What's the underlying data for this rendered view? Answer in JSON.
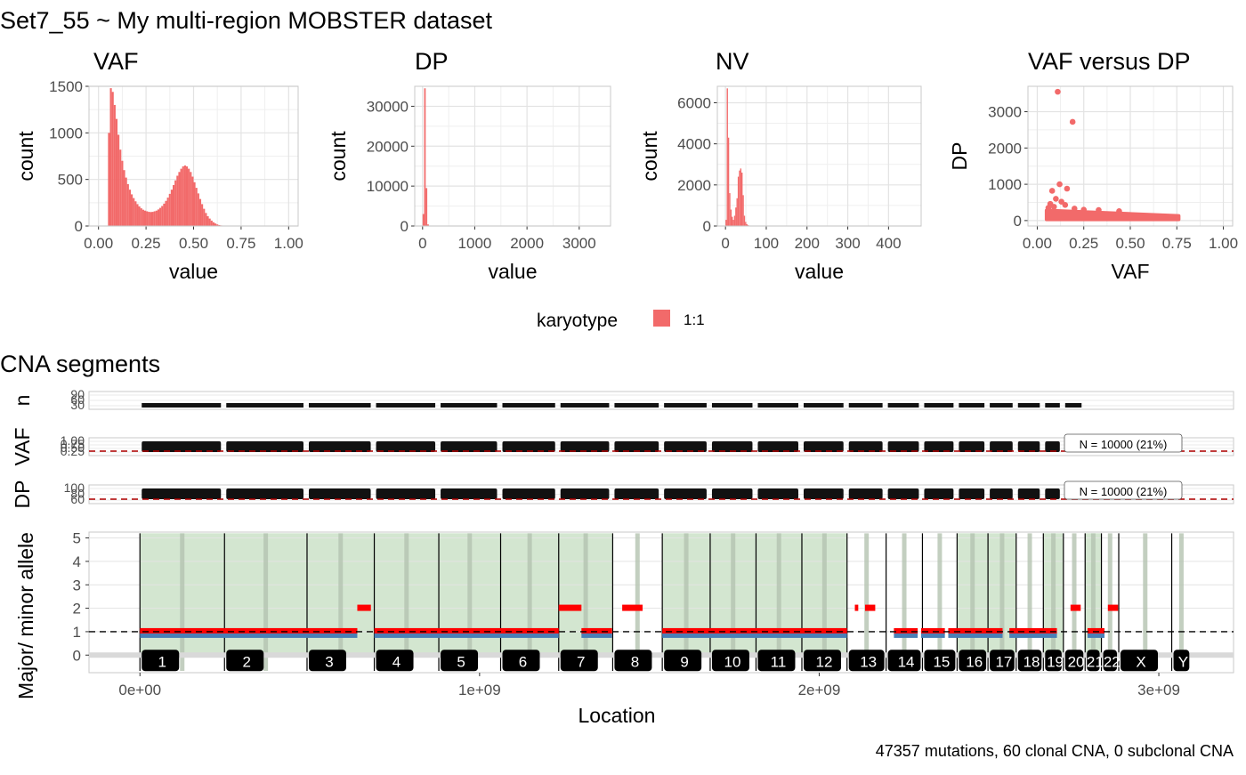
{
  "page": {
    "title": "Set7_55  ~  My multi-region MOBSTER dataset",
    "footer": "47357 mutations, 60 clonal CNA, 0 subclonal CNA",
    "cna_title": "CNA segments"
  },
  "colors": {
    "hist": "#F26A6A",
    "panel_border": "#C8C8C8",
    "grid": "#E3E3E3",
    "clonal_fill": "#D3E6D0",
    "major": "#FF0000",
    "minor": "#4A7FB5",
    "dashed": "#B00000"
  },
  "legend": {
    "title": "karyotype",
    "entries": [
      {
        "label": "1:1",
        "color": "#F26A6A"
      }
    ]
  },
  "chart_data": [
    {
      "type": "bar",
      "title": "VAF",
      "xlabel": "value",
      "ylabel": "count",
      "xlim": [
        -0.05,
        1.05
      ],
      "ylim": [
        0,
        1500
      ],
      "xticks": [
        0,
        0.25,
        0.5,
        0.75,
        1
      ],
      "xtick_labels": [
        "0.00",
        "0.25",
        "0.50",
        "0.75",
        "1.00"
      ],
      "yticks": [
        0,
        500,
        1000,
        1500
      ],
      "ytick_labels": [
        "0",
        "500",
        "1000",
        "1500"
      ],
      "bin_width": 0.01,
      "bin_start": 0.05,
      "values": [
        1000,
        1480,
        1440,
        1300,
        1150,
        980,
        820,
        700,
        600,
        520,
        450,
        390,
        340,
        300,
        265,
        235,
        210,
        190,
        175,
        165,
        158,
        152,
        150,
        152,
        158,
        165,
        178,
        195,
        215,
        240,
        270,
        305,
        345,
        390,
        440,
        490,
        540,
        580,
        615,
        640,
        650,
        640,
        615,
        580,
        530,
        470,
        410,
        350,
        290,
        235,
        185,
        140,
        105,
        80,
        58,
        40,
        27,
        17,
        10,
        6,
        3,
        2
      ]
    },
    {
      "type": "bar",
      "title": "DP",
      "xlabel": "value",
      "ylabel": "count",
      "xlim": [
        -150,
        3600
      ],
      "ylim": [
        0,
        35000
      ],
      "xticks": [
        0,
        1000,
        2000,
        3000
      ],
      "xtick_labels": [
        "0",
        "1000",
        "2000",
        "3000"
      ],
      "yticks": [
        0,
        10000,
        20000,
        30000
      ],
      "ytick_labels": [
        "0",
        "10000",
        "20000",
        "30000"
      ],
      "bin_width": 30,
      "bin_start": 0,
      "values": [
        3000,
        34500,
        9500,
        400,
        60,
        15,
        5
      ]
    },
    {
      "type": "bar",
      "title": "NV",
      "xlabel": "value",
      "ylabel": "count",
      "xlim": [
        -20,
        480
      ],
      "ylim": [
        0,
        6800
      ],
      "xticks": [
        0,
        100,
        200,
        300,
        400
      ],
      "xtick_labels": [
        "0",
        "100",
        "200",
        "300",
        "400"
      ],
      "yticks": [
        0,
        2000,
        4000,
        6000
      ],
      "ytick_labels": [
        "0",
        "2000",
        "4000",
        "6000"
      ],
      "bin_width": 3,
      "bin_start": 0,
      "values": [
        300,
        6700,
        4300,
        1600,
        800,
        450,
        300,
        500,
        900,
        1350,
        2400,
        2700,
        2800,
        2600,
        1500,
        500,
        200,
        90,
        40,
        15
      ]
    },
    {
      "type": "scatter",
      "title": "VAF versus DP",
      "xlabel": "VAF",
      "ylabel": "DP",
      "xlim": [
        -0.05,
        1.05
      ],
      "ylim": [
        -150,
        3700
      ],
      "xticks": [
        0,
        0.25,
        0.5,
        0.75,
        1
      ],
      "xtick_labels": [
        "0.00",
        "0.25",
        "0.50",
        "0.75",
        "1.00"
      ],
      "yticks": [
        0,
        1000,
        2000,
        3000
      ],
      "ytick_labels": [
        "0",
        "1000",
        "2000",
        "3000"
      ],
      "points": [
        [
          0.11,
          3550
        ],
        [
          0.19,
          2720
        ],
        [
          0.12,
          1000
        ],
        [
          0.08,
          820
        ],
        [
          0.16,
          880
        ],
        [
          0.1,
          600
        ],
        [
          0.13,
          520
        ],
        [
          0.15,
          430
        ],
        [
          0.07,
          460
        ],
        [
          0.09,
          380
        ],
        [
          0.2,
          330
        ],
        [
          0.33,
          290
        ],
        [
          0.44,
          260
        ],
        [
          0.06,
          350
        ],
        [
          0.25,
          300
        ]
      ],
      "bulk_band": {
        "x_range": [
          0.05,
          0.76
        ],
        "dp_top_left": 280,
        "dp_top_right": 130,
        "dp_bottom": 30
      }
    },
    {
      "type": "bar",
      "title": "",
      "ylabel": "Major/ minor allele",
      "xlabel": "Location",
      "xlim": [
        -150000000,
        3220000000
      ],
      "ylim": [
        -0.75,
        5.25
      ],
      "xticks": [
        0,
        1000000000,
        2000000000,
        3000000000
      ],
      "xtick_labels": [
        "0e+00",
        "1e+09",
        "2e+09",
        "3e+09"
      ],
      "yticks": [
        0,
        1,
        2,
        3,
        4,
        5
      ],
      "ytick_labels": [
        "0",
        "1",
        "2",
        "3",
        "4",
        "5"
      ],
      "chromosomes": [
        {
          "label": "1",
          "start": 0,
          "end": 249000000,
          "clonal": true
        },
        {
          "label": "2",
          "start": 249000000,
          "end": 492000000,
          "clonal": true
        },
        {
          "label": "3",
          "start": 492000000,
          "end": 690000000,
          "clonal": true
        },
        {
          "label": "4",
          "start": 690000000,
          "end": 880000000,
          "clonal": true
        },
        {
          "label": "5",
          "start": 880000000,
          "end": 1062000000,
          "clonal": true
        },
        {
          "label": "6",
          "start": 1062000000,
          "end": 1233000000,
          "clonal": true
        },
        {
          "label": "7",
          "start": 1233000000,
          "end": 1392000000,
          "clonal": true
        },
        {
          "label": "8",
          "start": 1392000000,
          "end": 1538000000,
          "clonal": false
        },
        {
          "label": "9",
          "start": 1538000000,
          "end": 1679000000,
          "clonal": true
        },
        {
          "label": "10",
          "start": 1679000000,
          "end": 1814000000,
          "clonal": true
        },
        {
          "label": "11",
          "start": 1814000000,
          "end": 1949000000,
          "clonal": true
        },
        {
          "label": "12",
          "start": 1949000000,
          "end": 2082000000,
          "clonal": true
        },
        {
          "label": "13",
          "start": 2082000000,
          "end": 2197000000,
          "clonal": false
        },
        {
          "label": "14",
          "start": 2197000000,
          "end": 2304000000,
          "clonal": false
        },
        {
          "label": "15",
          "start": 2304000000,
          "end": 2406000000,
          "clonal": false
        },
        {
          "label": "16",
          "start": 2406000000,
          "end": 2497000000,
          "clonal": true
        },
        {
          "label": "17",
          "start": 2497000000,
          "end": 2580000000,
          "clonal": true
        },
        {
          "label": "18",
          "start": 2580000000,
          "end": 2660000000,
          "clonal": false
        },
        {
          "label": "19",
          "start": 2660000000,
          "end": 2719000000,
          "clonal": true
        },
        {
          "label": "20",
          "start": 2719000000,
          "end": 2783000000,
          "clonal": false
        },
        {
          "label": "21",
          "start": 2783000000,
          "end": 2831000000,
          "clonal": true
        },
        {
          "label": "22",
          "start": 2831000000,
          "end": 2882000000,
          "clonal": false
        },
        {
          "label": "X",
          "start": 2882000000,
          "end": 3038000000,
          "clonal": false
        },
        {
          "label": "Y",
          "start": 3038000000,
          "end": 3095000000,
          "clonal": false
        }
      ],
      "chrom_label_text": [
        "1",
        "2",
        "3",
        "4",
        "5",
        "6",
        "7",
        "8",
        "9",
        "10",
        "11",
        "12",
        "13",
        "14",
        "15",
        "16",
        "17",
        "18",
        "19",
        "20",
        "21",
        "22",
        "X",
        "Y"
      ],
      "segments": [
        {
          "start": 0,
          "end": 640000000,
          "major": 1,
          "minor": 1
        },
        {
          "start": 640000000,
          "end": 680000000,
          "major": 2,
          "minor": 1
        },
        {
          "start": 690000000,
          "end": 1233000000,
          "major": 1,
          "minor": 1
        },
        {
          "start": 1233000000,
          "end": 1300000000,
          "major": 2,
          "minor": 1
        },
        {
          "start": 1300000000,
          "end": 1390000000,
          "major": 1,
          "minor": 1
        },
        {
          "start": 1420000000,
          "end": 1480000000,
          "major": 2,
          "minor": 1
        },
        {
          "start": 1538000000,
          "end": 2082000000,
          "major": 1,
          "minor": 1
        },
        {
          "start": 2105000000,
          "end": 2115000000,
          "major": 2,
          "minor": 1
        },
        {
          "start": 2135000000,
          "end": 2165000000,
          "major": 2,
          "minor": 1
        },
        {
          "start": 2220000000,
          "end": 2290000000,
          "major": 1,
          "minor": 1
        },
        {
          "start": 2300000000,
          "end": 2370000000,
          "major": 1,
          "minor": 1
        },
        {
          "start": 2380000000,
          "end": 2540000000,
          "major": 1,
          "minor": 1
        },
        {
          "start": 2560000000,
          "end": 2700000000,
          "major": 1,
          "minor": 1
        },
        {
          "start": 2740000000,
          "end": 2770000000,
          "major": 2,
          "minor": 1
        },
        {
          "start": 2790000000,
          "end": 2840000000,
          "major": 1,
          "minor": 1
        },
        {
          "start": 2850000000,
          "end": 2880000000,
          "major": 2,
          "minor": 1
        }
      ],
      "ref_line": 1,
      "n_track": {
        "label": "n",
        "ticks": [
          "90",
          "60",
          "30"
        ]
      },
      "vaf_track": {
        "label": "VAF",
        "ticks": [
          "1.00",
          "0.75",
          "0.50",
          "0.25"
        ],
        "annotation": "N = 10000 (21%)"
      },
      "dp_track": {
        "label": "DP",
        "ticks": [
          "100",
          "80",
          "60"
        ],
        "annotation": "N = 10000 (21%)"
      }
    }
  ]
}
